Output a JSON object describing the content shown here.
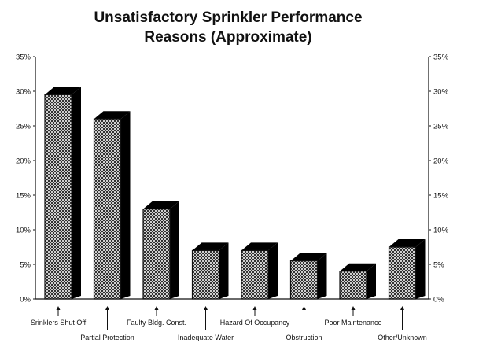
{
  "chart_data": {
    "type": "bar",
    "title_line1": "Unsatisfactory Sprinkler Performance",
    "title_line2": "Reasons (Approximate)",
    "categories": [
      "Srinklers Shut Off",
      "Partial Protection",
      "Faulty Bldg. Const.",
      "Inadequate Water",
      "Hazard Of Occupancy",
      "Obstruction",
      "Poor Maintenance",
      "Other/Unknown"
    ],
    "values": [
      29.5,
      26,
      13,
      7,
      7,
      5.5,
      4,
      7.5
    ],
    "ylim": [
      0,
      35
    ],
    "yticks": [
      "0%",
      "5%",
      "10%",
      "15%",
      "20%",
      "25%",
      "30%",
      "35%"
    ],
    "grid": false,
    "bar_style": "3d-crosshatch",
    "colors": {
      "bar_side": "#000000",
      "bar_pattern": "#111111",
      "background": "#ffffff"
    }
  }
}
